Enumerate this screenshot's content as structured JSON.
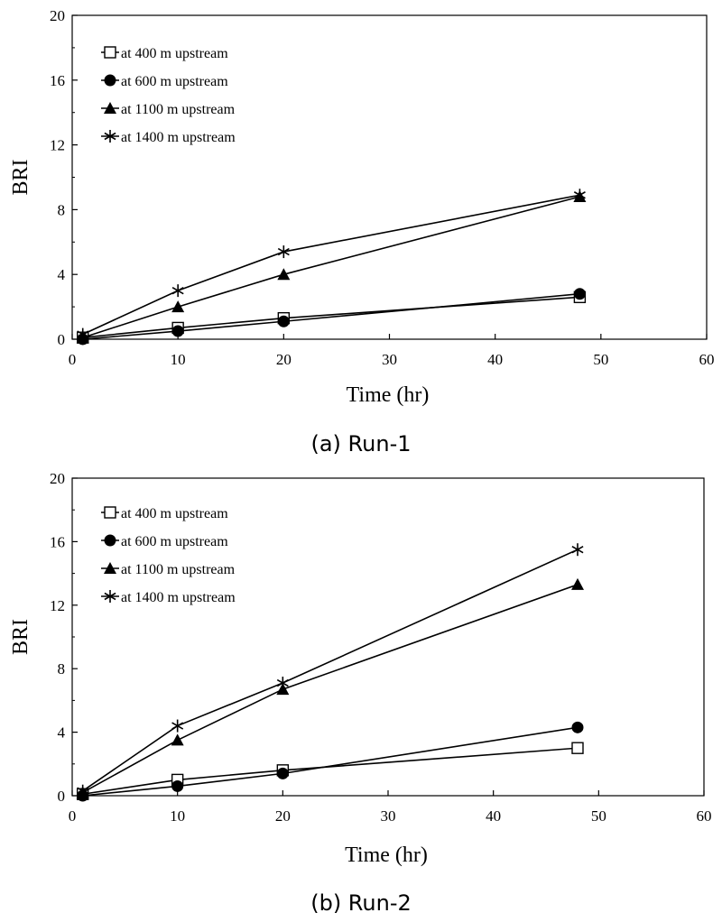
{
  "chart_data": [
    {
      "type": "line",
      "caption": "(a) Run-1",
      "xlabel": "Time (hr)",
      "ylabel": "BRI",
      "xlim": [
        0,
        60
      ],
      "ylim": [
        0,
        20
      ],
      "xticks": [
        0,
        10,
        20,
        30,
        40,
        50,
        60
      ],
      "yticks": [
        0,
        4,
        8,
        12,
        16,
        20
      ],
      "grid": false,
      "legend_position": "top-left",
      "series": [
        {
          "name": "at 400 m upstream",
          "marker": "open-square",
          "x": [
            1,
            10,
            20,
            48
          ],
          "y": [
            0.1,
            0.7,
            1.3,
            2.6
          ]
        },
        {
          "name": "at 600 m upstream",
          "marker": "filled-circle",
          "x": [
            1,
            10,
            20,
            48
          ],
          "y": [
            0.0,
            0.5,
            1.1,
            2.8
          ]
        },
        {
          "name": "at 1100 m upstream",
          "marker": "filled-triangle",
          "x": [
            1,
            10,
            20,
            48
          ],
          "y": [
            0.1,
            2.0,
            4.0,
            8.8
          ]
        },
        {
          "name": "at 1400 m upstream",
          "marker": "asterisk",
          "x": [
            1,
            10,
            20,
            48
          ],
          "y": [
            0.3,
            3.0,
            5.4,
            8.9
          ]
        }
      ]
    },
    {
      "type": "line",
      "caption": "(b) Run-2",
      "xlabel": "Time (hr)",
      "ylabel": "BRI",
      "xlim": [
        0,
        60
      ],
      "ylim": [
        0,
        20
      ],
      "xticks": [
        0,
        10,
        20,
        30,
        40,
        50,
        60
      ],
      "yticks": [
        0,
        4,
        8,
        12,
        16,
        20
      ],
      "grid": false,
      "legend_position": "top-left",
      "series": [
        {
          "name": "at 400 m upstream",
          "marker": "open-square",
          "x": [
            1,
            10,
            20,
            48
          ],
          "y": [
            0.1,
            1.0,
            1.6,
            3.0
          ]
        },
        {
          "name": "at 600 m upstream",
          "marker": "filled-circle",
          "x": [
            1,
            10,
            20,
            48
          ],
          "y": [
            0.0,
            0.6,
            1.4,
            4.3
          ]
        },
        {
          "name": "at 1100 m upstream",
          "marker": "filled-triangle",
          "x": [
            1,
            10,
            20,
            48
          ],
          "y": [
            0.2,
            3.5,
            6.7,
            13.3
          ]
        },
        {
          "name": "at 1400 m upstream",
          "marker": "asterisk",
          "x": [
            1,
            10,
            20,
            48
          ],
          "y": [
            0.3,
            4.4,
            7.1,
            15.5
          ]
        }
      ]
    }
  ]
}
